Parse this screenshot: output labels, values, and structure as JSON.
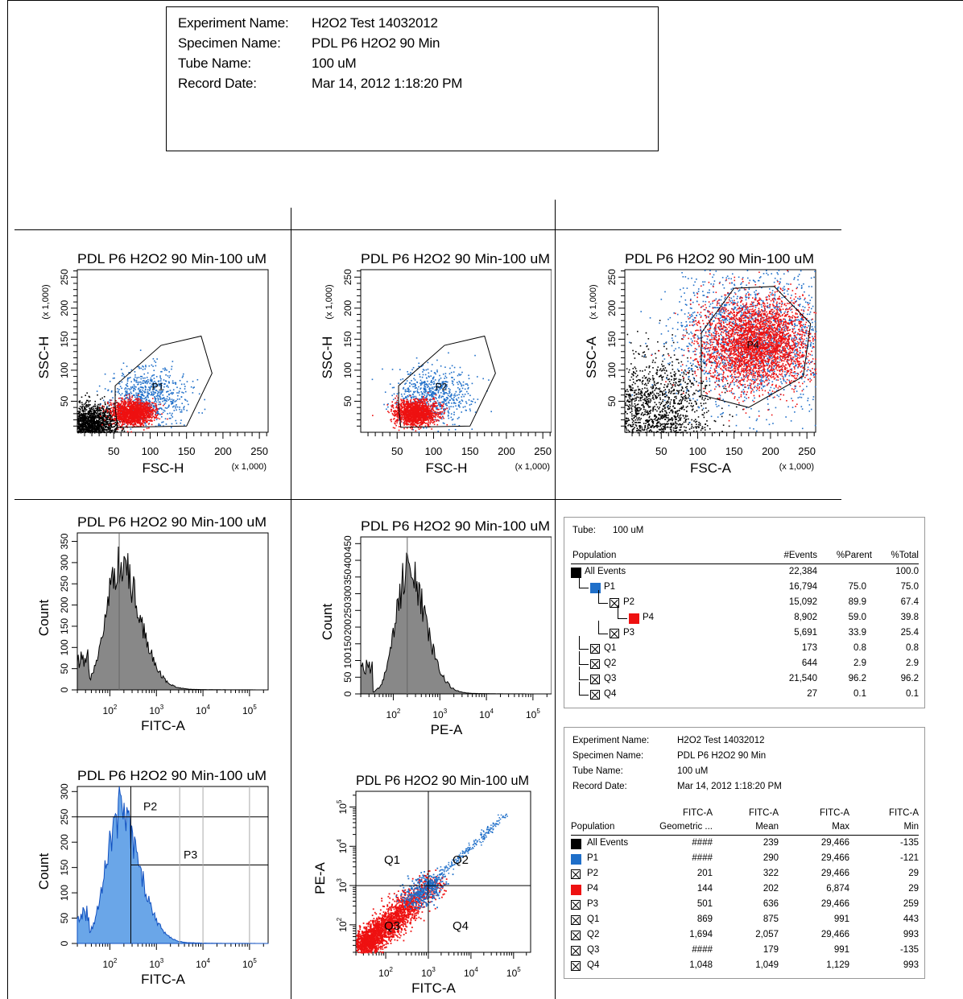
{
  "header": {
    "rows": [
      {
        "label": "Experiment Name:",
        "value": "H2O2 Test 14032012"
      },
      {
        "label": "Specimen Name:",
        "value": "PDL P6 H2O2 90 Min"
      },
      {
        "label": "Tube Name:",
        "value": "100 uM"
      },
      {
        "label": "Record Date:",
        "value": "Mar 14, 2012 1:18:20 PM"
      }
    ]
  },
  "colors": {
    "black": "#000000",
    "blue": "#1f6fc9",
    "red": "#ee1111",
    "gray": "#888888",
    "hist_blue": "#6aa6e8"
  },
  "chart_data": [
    {
      "id": "plot1",
      "type": "scatter",
      "title": "PDL P6 H2O2 90 Min-100 uM",
      "xlabel": "FSC-H",
      "ylabel": "SSC-H",
      "x_mult": "(x 1,000)",
      "y_mult": "(x 1,000)",
      "xlim": [
        0,
        262
      ],
      "ylim": [
        0,
        262
      ],
      "xticks": [
        "50",
        "100",
        "150",
        "200",
        "250"
      ],
      "yticks": [
        "50",
        "100",
        "150",
        "200",
        "250"
      ],
      "gates": [
        {
          "name": "P1",
          "points": [
            [
              52,
              40
            ],
            [
              52,
              75
            ],
            [
              115,
              140
            ],
            [
              170,
              155
            ],
            [
              185,
              95
            ],
            [
              150,
              10
            ],
            [
              55,
              8
            ]
          ]
        }
      ],
      "series": [
        {
          "color": "black",
          "cx": 22,
          "cy": 18,
          "sx": 18,
          "sy": 14,
          "n": 1200
        },
        {
          "color": "blue",
          "cx": 98,
          "cy": 60,
          "sx": 26,
          "sy": 22,
          "n": 700
        },
        {
          "color": "red",
          "cx": 75,
          "cy": 32,
          "sx": 14,
          "sy": 10,
          "n": 1500
        }
      ]
    },
    {
      "id": "plot2",
      "type": "scatter",
      "title": "PDL P6 H2O2 90 Min-100 uM",
      "xlabel": "FSC-H",
      "ylabel": "SSC-H",
      "x_mult": "(x 1,000)",
      "y_mult": "(x 1,000)",
      "xlim": [
        0,
        262
      ],
      "ylim": [
        0,
        262
      ],
      "xticks": [
        "50",
        "100",
        "150",
        "200",
        "250"
      ],
      "yticks": [
        "50",
        "100",
        "150",
        "200",
        "250"
      ],
      "gates": [
        {
          "name": "P2",
          "points": [
            [
              52,
              40
            ],
            [
              52,
              75
            ],
            [
              115,
              140
            ],
            [
              170,
              155
            ],
            [
              185,
              95
            ],
            [
              150,
              10
            ],
            [
              55,
              8
            ]
          ]
        }
      ],
      "series": [
        {
          "color": "blue",
          "cx": 98,
          "cy": 60,
          "sx": 26,
          "sy": 22,
          "n": 700
        },
        {
          "color": "red",
          "cx": 75,
          "cy": 32,
          "sx": 14,
          "sy": 10,
          "n": 1500
        }
      ]
    },
    {
      "id": "plot3",
      "type": "scatter",
      "title": "PDL P6 H2O2 90 Min-100 uM",
      "xlabel": "FSC-A",
      "ylabel": "SSC-A",
      "x_mult": "(x 1,000)",
      "y_mult": "(x 1,000)",
      "xlim": [
        0,
        262
      ],
      "ylim": [
        0,
        262
      ],
      "xticks": [
        "50",
        "100",
        "150",
        "200",
        "250"
      ],
      "yticks": [
        "50",
        "100",
        "150",
        "200",
        "250"
      ],
      "gates": [
        {
          "name": "P4",
          "points": [
            [
              105,
              160
            ],
            [
              150,
              232
            ],
            [
              205,
              235
            ],
            [
              255,
              175
            ],
            [
              245,
              90
            ],
            [
              170,
              40
            ],
            [
              105,
              60
            ]
          ]
        }
      ],
      "series": [
        {
          "color": "black",
          "cx": 45,
          "cy": 40,
          "sx": 35,
          "sy": 45,
          "n": 1100
        },
        {
          "color": "blue",
          "cx": 175,
          "cy": 150,
          "sx": 55,
          "sy": 55,
          "n": 1800
        },
        {
          "color": "red",
          "cx": 180,
          "cy": 145,
          "sx": 38,
          "sy": 36,
          "n": 3200
        }
      ]
    },
    {
      "id": "hist1",
      "type": "bar",
      "title": "PDL P6 H2O2 90 Min-100 uM",
      "xlabel": "FITC-A",
      "ylabel": "Count",
      "xlim_log": [
        1.3,
        5.4
      ],
      "ylim": [
        0,
        370
      ],
      "yticks": [
        "0",
        "50",
        "100",
        "150",
        "200",
        "250",
        "300",
        "350"
      ],
      "xticks": [
        "10^2",
        "10^3",
        "10^4",
        "10^5"
      ],
      "peak_log": 2.2,
      "width_log": 0.36,
      "peak_count": 290
    },
    {
      "id": "hist2",
      "type": "bar",
      "title": "PDL P6 H2O2 90 Min-100 uM",
      "xlabel": "PE-A",
      "ylabel": "Count",
      "xlim_log": [
        1.3,
        5.4
      ],
      "ylim": [
        0,
        470
      ],
      "yticks": [
        "0",
        "50",
        "100",
        "150",
        "200",
        "250",
        "300",
        "350",
        "400",
        "450"
      ],
      "xticks": [
        "10^2",
        "10^3",
        "10^4",
        "10^5"
      ],
      "peak_log": 2.3,
      "width_log": 0.32,
      "peak_count": 360
    },
    {
      "id": "hist3",
      "type": "bar",
      "title": "PDL P6 H2O2 90 Min-100 uM",
      "xlabel": "FITC-A",
      "ylabel": "Count",
      "xlim_log": [
        1.3,
        5.4
      ],
      "ylim": [
        0,
        310
      ],
      "yticks": [
        "0",
        "50",
        "100",
        "150",
        "200",
        "250",
        "300"
      ],
      "xticks": [
        "10^2",
        "10^3",
        "10^4",
        "10^5"
      ],
      "peak_log": 2.2,
      "width_log": 0.36,
      "peak_count": 250,
      "gates": [
        {
          "name": "P2",
          "level": 250
        },
        {
          "name": "P3",
          "level": 155,
          "from_log": 2.45
        }
      ]
    },
    {
      "id": "quad",
      "type": "scatter",
      "title": "PDL P6 H2O2 90 Min-100 uM",
      "xlabel": "FITC-A",
      "ylabel": "PE-A",
      "xlim_log": [
        1.3,
        5.4
      ],
      "ylim_log": [
        1.3,
        5.4
      ],
      "xticks": [
        "10^2",
        "10^3",
        "10^4",
        "10^5"
      ],
      "yticks": [
        "10^2",
        "10^3",
        "10^4",
        "10^5"
      ],
      "quad_log": [
        3.0,
        3.0
      ],
      "quadrants": [
        "Q1",
        "Q2",
        "Q3",
        "Q4"
      ]
    }
  ],
  "stats_table": {
    "tube_label": "Tube:",
    "tube_value": "100 uM",
    "columns": [
      "Population",
      "#Events",
      "%Parent",
      "%Total"
    ],
    "rows": [
      {
        "name": "All Events",
        "marker": "black",
        "level": 0,
        "events": "22,384",
        "parent": "",
        "total": "100.0"
      },
      {
        "name": "P1",
        "marker": "blue",
        "level": 1,
        "events": "16,794",
        "parent": "75.0",
        "total": "75.0"
      },
      {
        "name": "P2",
        "marker": "x",
        "level": 2,
        "events": "15,092",
        "parent": "89.9",
        "total": "67.4"
      },
      {
        "name": "P4",
        "marker": "red",
        "level": 3,
        "events": "8,902",
        "parent": "59.0",
        "total": "39.8"
      },
      {
        "name": "P3",
        "marker": "x",
        "level": 2,
        "events": "5,691",
        "parent": "33.9",
        "total": "25.4"
      },
      {
        "name": "Q1",
        "marker": "x",
        "level": 1,
        "events": "173",
        "parent": "0.8",
        "total": "0.8"
      },
      {
        "name": "Q2",
        "marker": "x",
        "level": 1,
        "events": "644",
        "parent": "2.9",
        "total": "2.9"
      },
      {
        "name": "Q3",
        "marker": "x",
        "level": 1,
        "events": "21,540",
        "parent": "96.2",
        "total": "96.2"
      },
      {
        "name": "Q4",
        "marker": "x",
        "level": 1,
        "events": "27",
        "parent": "0.1",
        "total": "0.1"
      }
    ]
  },
  "fitc_table": {
    "info": [
      {
        "label": "Experiment Name:",
        "value": "H2O2 Test 14032012"
      },
      {
        "label": "Specimen Name:",
        "value": "PDL P6 H2O2 90 Min"
      },
      {
        "label": "Tube Name:",
        "value": "100 uM"
      },
      {
        "label": "Record Date:",
        "value": "Mar 14, 2012 1:18:20 PM"
      }
    ],
    "col_top": [
      "",
      "FITC-A",
      "FITC-A",
      "FITC-A",
      "FITC-A"
    ],
    "col_bottom": [
      "Population",
      "Geometric ...",
      "Mean",
      "Max",
      "Min"
    ],
    "rows": [
      {
        "name": "All Events",
        "marker": "black",
        "geo": "####",
        "mean": "239",
        "max": "29,466",
        "min": "-135"
      },
      {
        "name": "P1",
        "marker": "blue",
        "geo": "####",
        "mean": "290",
        "max": "29,466",
        "min": "-121"
      },
      {
        "name": "P2",
        "marker": "x",
        "geo": "201",
        "mean": "322",
        "max": "29,466",
        "min": "29"
      },
      {
        "name": "P4",
        "marker": "red",
        "geo": "144",
        "mean": "202",
        "max": "6,874",
        "min": "29"
      },
      {
        "name": "P3",
        "marker": "x",
        "geo": "501",
        "mean": "636",
        "max": "29,466",
        "min": "259"
      },
      {
        "name": "Q1",
        "marker": "x",
        "geo": "869",
        "mean": "875",
        "max": "991",
        "min": "443"
      },
      {
        "name": "Q2",
        "marker": "x",
        "geo": "1,694",
        "mean": "2,057",
        "max": "29,466",
        "min": "993"
      },
      {
        "name": "Q3",
        "marker": "x",
        "geo": "####",
        "mean": "179",
        "max": "991",
        "min": "-135"
      },
      {
        "name": "Q4",
        "marker": "x",
        "geo": "1,048",
        "mean": "1,049",
        "max": "1,129",
        "min": "993"
      }
    ]
  }
}
